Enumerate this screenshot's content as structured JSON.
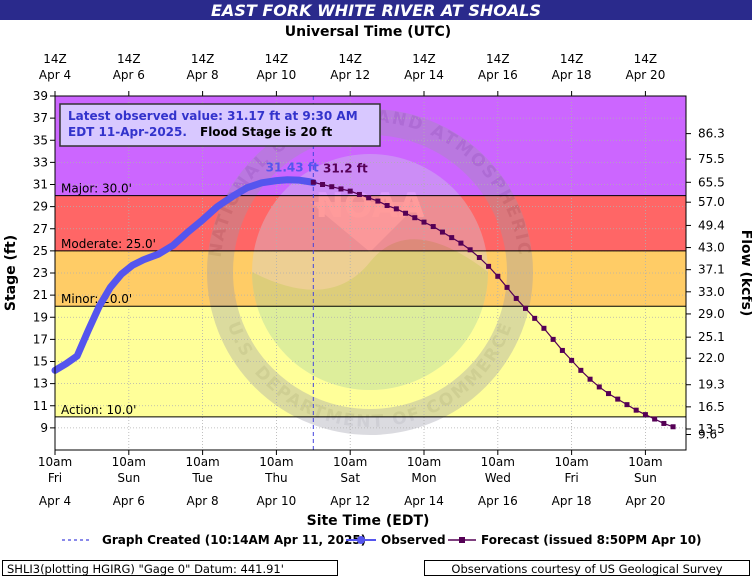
{
  "title": "EAST FORK WHITE RIVER AT SHOALS",
  "footer": {
    "left": "SHLI3(plotting HGIRG) \"Gage 0\" Datum: 441.91'",
    "right": "Observations courtesy of US Geological Survey"
  },
  "watermark": {
    "text": "NATIONAL OCEANIC AND ATMOSPHERIC ADMINISTRATION",
    "bottom_text": "U.S. DEPARTMENT OF COMMERCE",
    "logo": "NOAA"
  },
  "chart_data": {
    "type": "line",
    "top_axis": {
      "title": "Universal Time (UTC)",
      "ticks": [
        {
          "x": 4,
          "l1": "14Z",
          "l2": "Apr  4"
        },
        {
          "x": 6,
          "l1": "14Z",
          "l2": "Apr  6"
        },
        {
          "x": 8,
          "l1": "14Z",
          "l2": "Apr  8"
        },
        {
          "x": 10,
          "l1": "14Z",
          "l2": "Apr 10"
        },
        {
          "x": 12,
          "l1": "14Z",
          "l2": "Apr 12"
        },
        {
          "x": 14,
          "l1": "14Z",
          "l2": "Apr 14"
        },
        {
          "x": 16,
          "l1": "14Z",
          "l2": "Apr 16"
        },
        {
          "x": 18,
          "l1": "14Z",
          "l2": "Apr 18"
        },
        {
          "x": 20,
          "l1": "14Z",
          "l2": "Apr 20"
        }
      ]
    },
    "bottom_axis": {
      "title": "Site Time (EDT)",
      "ticks": [
        {
          "x": 4,
          "l1": "10am",
          "l2": "Fri",
          "l3": "Apr 4"
        },
        {
          "x": 6,
          "l1": "10am",
          "l2": "Sun",
          "l3": "Apr 6"
        },
        {
          "x": 8,
          "l1": "10am",
          "l2": "Tue",
          "l3": "Apr 8"
        },
        {
          "x": 10,
          "l1": "10am",
          "l2": "Thu",
          "l3": "Apr 10"
        },
        {
          "x": 12,
          "l1": "10am",
          "l2": "Sat",
          "l3": "Apr 12"
        },
        {
          "x": 14,
          "l1": "10am",
          "l2": "Mon",
          "l3": "Apr 14"
        },
        {
          "x": 16,
          "l1": "10am",
          "l2": "Wed",
          "l3": "Apr 16"
        },
        {
          "x": 18,
          "l1": "10am",
          "l2": "Fri",
          "l3": "Apr 18"
        },
        {
          "x": 20,
          "l1": "10am",
          "l2": "Sun",
          "l3": "Apr 20"
        }
      ]
    },
    "xlim": [
      4,
      21.1
    ],
    "y_left": {
      "label": "Stage (ft)",
      "lim": [
        7,
        39
      ],
      "ticks": [
        9,
        11,
        13,
        15,
        17,
        19,
        21,
        23,
        25,
        27,
        29,
        31,
        33,
        35,
        37,
        39
      ]
    },
    "y_right": {
      "label": "Flow (kcfs)",
      "ticks": [
        {
          "stage": 8.4,
          "label": "9.6"
        },
        {
          "stage": 8.9,
          "label": "13.5"
        },
        {
          "stage": 10.9,
          "label": "16.5"
        },
        {
          "stage": 12.9,
          "label": "19.3"
        },
        {
          "stage": 15.3,
          "label": "22.0"
        },
        {
          "stage": 17.2,
          "label": "25.1"
        },
        {
          "stage": 19.3,
          "label": "29.0"
        },
        {
          "stage": 21.3,
          "label": "33.0"
        },
        {
          "stage": 23.3,
          "label": "37.1"
        },
        {
          "stage": 25.3,
          "label": "43.0"
        },
        {
          "stage": 27.3,
          "label": "49.4"
        },
        {
          "stage": 29.4,
          "label": "57.0"
        },
        {
          "stage": 31.2,
          "label": "65.5"
        },
        {
          "stage": 33.3,
          "label": "75.5"
        },
        {
          "stage": 35.6,
          "label": "86.3"
        }
      ]
    },
    "flood_categories": [
      {
        "name": "Action",
        "label": "Action: 10.0'",
        "from": 10,
        "to": 20,
        "color": "#ffff99"
      },
      {
        "name": "Minor",
        "label": "Minor: 20.0'",
        "from": 20,
        "to": 25,
        "color": "#ffcc66"
      },
      {
        "name": "Moderate",
        "label": "Moderate: 25.0'",
        "from": 25,
        "to": 30,
        "color": "#ff6666"
      },
      {
        "name": "Major",
        "label": "Major: 30.0'",
        "from": 30,
        "to": 39,
        "color": "#cc66ff"
      }
    ],
    "below_action_color": "#ffffff",
    "info_box": {
      "line1": "Latest observed value: 31.17 ft at 9:30 AM",
      "line2": "EDT 11-Apr-2025.",
      "flood_text": "Flood Stage is 20 ft"
    },
    "graph_created_x": 11.0,
    "annotations": [
      {
        "text": "31.43 ft",
        "x": 10.7,
        "y": 31.43
      },
      {
        "text": "31.2 ft",
        "x": 11.1,
        "y": 31.2
      }
    ],
    "series": [
      {
        "name": "Observed",
        "color": "#5555ee",
        "x": [
          4.0,
          4.3,
          4.6,
          4.9,
          5.2,
          5.5,
          5.8,
          6.1,
          6.4,
          6.8,
          7.2,
          7.6,
          8.0,
          8.4,
          8.8,
          9.2,
          9.6,
          10.0,
          10.3,
          10.6,
          10.9,
          11.0
        ],
        "y": [
          14.2,
          14.8,
          15.5,
          17.8,
          20.0,
          21.7,
          22.9,
          23.7,
          24.2,
          24.7,
          25.5,
          26.7,
          27.8,
          29.0,
          29.9,
          30.7,
          31.15,
          31.35,
          31.43,
          31.4,
          31.25,
          31.17
        ]
      },
      {
        "name": "Forecast",
        "color": "#550055",
        "x": [
          11.0,
          11.25,
          11.5,
          11.75,
          12.0,
          12.25,
          12.5,
          12.75,
          13.0,
          13.25,
          13.5,
          13.75,
          14.0,
          14.25,
          14.5,
          14.75,
          15.0,
          15.25,
          15.5,
          15.75,
          16.0,
          16.25,
          16.5,
          16.75,
          17.0,
          17.25,
          17.5,
          17.75,
          18.0,
          18.25,
          18.5,
          18.75,
          19.0,
          19.25,
          19.5,
          19.75,
          20.0,
          20.25,
          20.5,
          20.75
        ],
        "y": [
          31.2,
          31.0,
          30.8,
          30.6,
          30.4,
          30.1,
          29.8,
          29.5,
          29.1,
          28.8,
          28.4,
          28.0,
          27.6,
          27.2,
          26.7,
          26.2,
          25.7,
          25.1,
          24.4,
          23.6,
          22.7,
          21.7,
          20.7,
          19.8,
          18.9,
          18.0,
          17.0,
          16.0,
          15.1,
          14.2,
          13.4,
          12.7,
          12.1,
          11.6,
          11.1,
          10.6,
          10.2,
          9.8,
          9.4,
          9.1
        ]
      }
    ],
    "legend": {
      "created": "Graph Created (10:14AM Apr 11, 2025)",
      "observed": "Observed",
      "forecast": "Forecast (issued 8:50PM Apr 10)"
    }
  }
}
